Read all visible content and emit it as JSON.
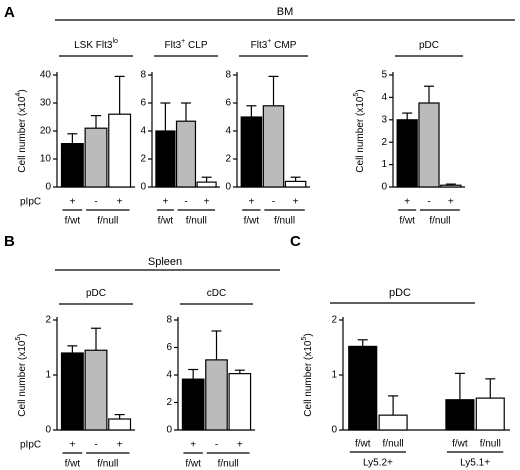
{
  "panels": [
    {
      "letter": "A",
      "label": "BM",
      "row_label": "pIpC"
    },
    {
      "letter": "B",
      "label": "Spleen",
      "row_label": "pIpC"
    },
    {
      "letter": "C",
      "label": "pDC"
    }
  ],
  "chart_data": [
    {
      "type": "bar",
      "title": [
        "LSK Flt3",
        "lo"
      ],
      "ylabel": [
        "Cell number (x10",
        "4",
        ")"
      ],
      "categories": [
        "+",
        "-",
        "+"
      ],
      "groups": [
        "f/wt",
        "f/null",
        null
      ],
      "values": [
        15.5,
        21,
        26
      ],
      "errors": [
        3.5,
        4.5,
        13.5
      ],
      "colors": [
        "#000000",
        "#bbbbbb",
        "#ffffff"
      ],
      "ylim": [
        0,
        40
      ],
      "yticks": [
        0,
        10,
        20,
        30,
        40
      ]
    },
    {
      "type": "bar",
      "title": [
        "Flt3",
        "+",
        " CLP"
      ],
      "categories": [
        "+",
        "-",
        "+"
      ],
      "groups": [
        "f/wt",
        "f/null",
        null
      ],
      "values": [
        4.0,
        4.7,
        0.35
      ],
      "errors": [
        2.0,
        1.3,
        0.35
      ],
      "colors": [
        "#000000",
        "#bbbbbb",
        "#ffffff"
      ],
      "ylim": [
        0,
        8
      ],
      "yticks": [
        0,
        2,
        4,
        6,
        8
      ]
    },
    {
      "type": "bar",
      "title": [
        "Flt3",
        "+",
        " CMP"
      ],
      "categories": [
        "+",
        "-",
        "+"
      ],
      "groups": [
        "f/wt",
        "f/null",
        null
      ],
      "values": [
        5.0,
        5.8,
        0.4
      ],
      "errors": [
        0.8,
        2.1,
        0.3
      ],
      "colors": [
        "#000000",
        "#bbbbbb",
        "#ffffff"
      ],
      "ylim": [
        0,
        8
      ],
      "yticks": [
        0,
        2,
        4,
        6,
        8
      ]
    },
    {
      "type": "bar",
      "title": [
        "pDC"
      ],
      "ylabel": [
        "Cell number (x10",
        "5",
        ")"
      ],
      "categories": [
        "+",
        "-",
        "+"
      ],
      "groups": [
        "f/wt",
        "f/null",
        null
      ],
      "values": [
        3.0,
        3.75,
        0.08
      ],
      "errors": [
        0.3,
        0.75,
        0.05
      ],
      "colors": [
        "#000000",
        "#bbbbbb",
        "#ffffff"
      ],
      "ylim": [
        0,
        5
      ],
      "yticks": [
        0,
        1,
        2,
        3,
        4,
        5
      ]
    },
    {
      "type": "bar",
      "title": [
        "pDC"
      ],
      "ylabel": [
        "Cell number (x10",
        "5",
        ")"
      ],
      "categories": [
        "+",
        "-",
        "+"
      ],
      "groups": [
        "f/wt",
        "f/null",
        null
      ],
      "values": [
        1.4,
        1.45,
        0.2
      ],
      "errors": [
        0.13,
        0.4,
        0.08
      ],
      "colors": [
        "#000000",
        "#bbbbbb",
        "#ffffff"
      ],
      "ylim": [
        0,
        2
      ],
      "yticks": [
        0,
        1,
        2
      ]
    },
    {
      "type": "bar",
      "title": [
        "cDC"
      ],
      "categories": [
        "+",
        "-",
        "+"
      ],
      "groups": [
        "f/wt",
        "f/null",
        null
      ],
      "values": [
        3.7,
        5.1,
        4.1
      ],
      "errors": [
        0.7,
        2.1,
        0.25
      ],
      "colors": [
        "#000000",
        "#bbbbbb",
        "#ffffff"
      ],
      "ylim": [
        0,
        8
      ],
      "yticks": [
        0,
        2,
        4,
        6,
        8
      ]
    },
    {
      "type": "bar",
      "ylabel": [
        "Cell number (x10",
        "5",
        ")"
      ],
      "categories": [
        "f/wt",
        "f/null",
        "f/wt",
        "f/null"
      ],
      "groups": [
        "Ly5.2+",
        null,
        "Ly5.1+",
        null
      ],
      "values": [
        1.52,
        0.27,
        0.55,
        0.58
      ],
      "errors": [
        0.12,
        0.35,
        0.48,
        0.35
      ],
      "colors": [
        "#000000",
        "#ffffff",
        "#000000",
        "#ffffff"
      ],
      "ylim": [
        0,
        2
      ],
      "yticks": [
        0,
        1,
        2
      ]
    }
  ]
}
